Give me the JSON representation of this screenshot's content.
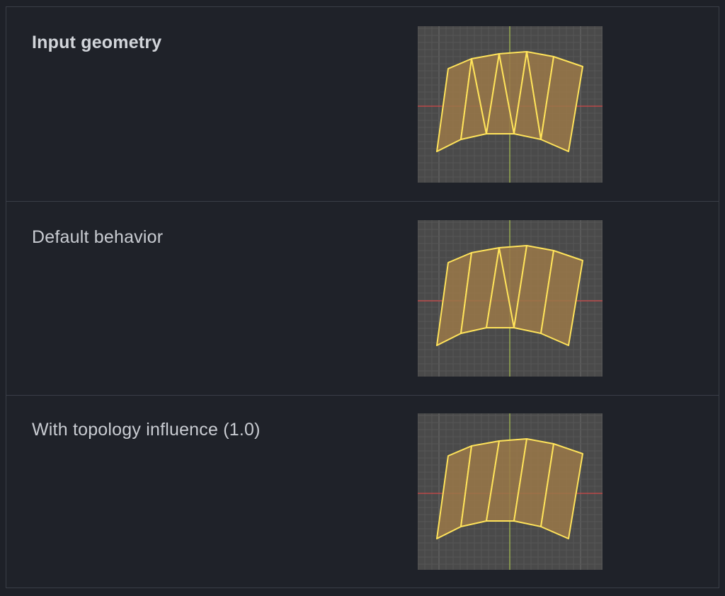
{
  "rows": [
    {
      "label": "Input geometry"
    },
    {
      "label": "Default behavior"
    },
    {
      "label": "With topology influence (1.0)"
    }
  ],
  "colors": {
    "background": "#1e2128",
    "viewport_bg": "#4a4a4a",
    "grid": "#565656",
    "x_axis": "#d04848",
    "y_axis": "#a8c050",
    "edge": "#ffe35a",
    "face": "#9a7848"
  }
}
